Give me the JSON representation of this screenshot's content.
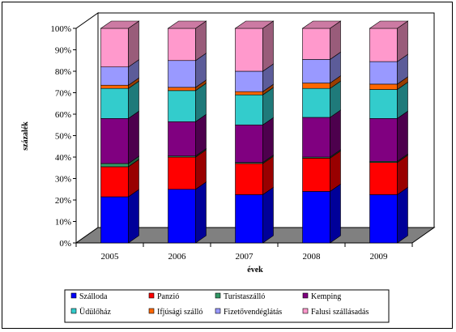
{
  "chart_data": {
    "type": "bar",
    "stacked": true,
    "percent": true,
    "three_d": true,
    "title": "",
    "xlabel": "évek",
    "ylabel": "százalék",
    "ylim": [
      0,
      100
    ],
    "yticks": [
      "0%",
      "10%",
      "20%",
      "30%",
      "40%",
      "50%",
      "60%",
      "70%",
      "80%",
      "90%",
      "100%"
    ],
    "categories": [
      "2005",
      "2006",
      "2007",
      "2008",
      "2009"
    ],
    "series": [
      {
        "name": "Szálloda",
        "color": "#0000ff",
        "values": [
          21.5,
          25,
          22.5,
          24,
          22.5
        ]
      },
      {
        "name": "Panzió",
        "color": "#ff0000",
        "values": [
          14,
          15,
          14.5,
          15.5,
          15
        ]
      },
      {
        "name": "Turistaszálló",
        "color": "#339966",
        "values": [
          1.5,
          0.5,
          0.5,
          0.5,
          0.5
        ]
      },
      {
        "name": "Kemping",
        "color": "#800080",
        "values": [
          21,
          16,
          17.5,
          18.5,
          20
        ]
      },
      {
        "name": "Üdülőház",
        "color": "#33cccc",
        "values": [
          14,
          14.5,
          14,
          13.5,
          13.5
        ]
      },
      {
        "name": "Ifjúsági szálló",
        "color": "#ff6600",
        "values": [
          1.5,
          1.5,
          1.5,
          2.5,
          2.5
        ]
      },
      {
        "name": "Fizetővendéglátás",
        "color": "#9999ff",
        "values": [
          8.5,
          12.5,
          9.5,
          11,
          10.5
        ]
      },
      {
        "name": "Falusi szállásadás",
        "color": "#ff99cc",
        "values": [
          18,
          15,
          20,
          14.5,
          15.5
        ]
      }
    ],
    "legend": "bottom",
    "grid": false
  }
}
